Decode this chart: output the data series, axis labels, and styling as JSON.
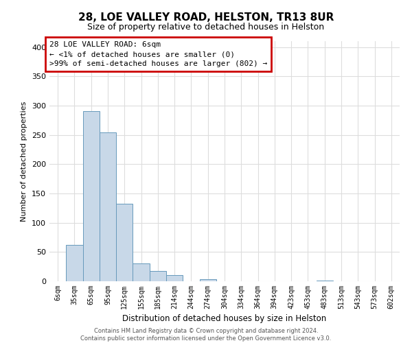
{
  "title": "28, LOE VALLEY ROAD, HELSTON, TR13 8UR",
  "subtitle": "Size of property relative to detached houses in Helston",
  "xlabel": "Distribution of detached houses by size in Helston",
  "ylabel": "Number of detached properties",
  "bar_labels": [
    "6sqm",
    "35sqm",
    "65sqm",
    "95sqm",
    "125sqm",
    "155sqm",
    "185sqm",
    "214sqm",
    "244sqm",
    "274sqm",
    "304sqm",
    "334sqm",
    "364sqm",
    "394sqm",
    "423sqm",
    "453sqm",
    "483sqm",
    "513sqm",
    "543sqm",
    "573sqm",
    "602sqm"
  ],
  "bar_values": [
    0,
    62,
    291,
    254,
    132,
    30,
    17,
    11,
    0,
    3,
    0,
    0,
    0,
    0,
    0,
    0,
    1,
    0,
    0,
    0,
    0
  ],
  "bar_color": "#c8d8e8",
  "bar_edge_color": "#6699bb",
  "ylim": [
    0,
    410
  ],
  "yticks": [
    0,
    50,
    100,
    150,
    200,
    250,
    300,
    350,
    400
  ],
  "annotation_box_text": [
    "28 LOE VALLEY ROAD: 6sqm",
    "← <1% of detached houses are smaller (0)",
    ">99% of semi-detached houses are larger (802) →"
  ],
  "annotation_box_color": "#ffffff",
  "annotation_box_edge_color": "#cc0000",
  "footer_line1": "Contains HM Land Registry data © Crown copyright and database right 2024.",
  "footer_line2": "Contains public sector information licensed under the Open Government Licence v3.0.",
  "bg_color": "#ffffff",
  "grid_color": "#dddddd"
}
